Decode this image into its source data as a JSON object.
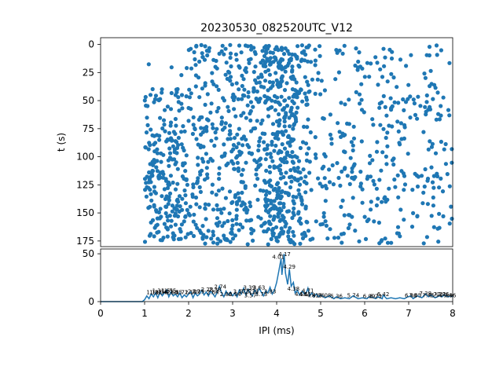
{
  "chart_data": [
    {
      "type": "scatter",
      "title": "20230530_082520UTC_V12",
      "xlabel": "",
      "ylabel": "t (s)",
      "xlim": [
        0,
        8
      ],
      "ylim": [
        180,
        -6
      ],
      "y_inverted": true,
      "yticks": [
        0,
        25,
        50,
        75,
        100,
        125,
        150,
        175
      ],
      "x_range_of_points": [
        1.0,
        8.0
      ],
      "point_count_approx": 1400,
      "dense_column_center": 4.15,
      "color": "#1f77b4",
      "grid": false
    },
    {
      "type": "line",
      "title": "",
      "xlabel": "IPI (ms)",
      "ylabel": "",
      "xlim": [
        0,
        8
      ],
      "ylim": [
        0,
        55
      ],
      "xticks": [
        0,
        1,
        2,
        3,
        4,
        5,
        6,
        7,
        8
      ],
      "yticks": [
        0,
        50
      ],
      "color": "#1f77b4",
      "grid": false,
      "series": [
        {
          "values": [
            [
              0,
              0
            ],
            [
              0.95,
              0
            ],
            [
              1.0,
              2
            ],
            [
              1.05,
              6
            ],
            [
              1.1,
              3
            ],
            [
              1.15,
              8
            ],
            [
              1.2,
              5
            ],
            [
              1.25,
              9
            ],
            [
              1.3,
              4
            ],
            [
              1.35,
              10
            ],
            [
              1.4,
              6
            ],
            [
              1.45,
              9
            ],
            [
              1.5,
              12
            ],
            [
              1.55,
              5
            ],
            [
              1.6,
              10
            ],
            [
              1.65,
              6
            ],
            [
              1.7,
              8
            ],
            [
              1.75,
              5
            ],
            [
              1.8,
              9
            ],
            [
              1.85,
              4
            ],
            [
              1.9,
              7
            ],
            [
              1.95,
              5
            ],
            [
              2.0,
              8
            ],
            [
              2.05,
              10
            ],
            [
              2.1,
              4
            ],
            [
              2.15,
              9
            ],
            [
              2.2,
              6
            ],
            [
              2.25,
              8
            ],
            [
              2.3,
              12
            ],
            [
              2.35,
              7
            ],
            [
              2.4,
              10
            ],
            [
              2.45,
              6
            ],
            [
              2.5,
              11
            ],
            [
              2.55,
              8
            ],
            [
              2.6,
              5
            ],
            [
              2.65,
              10
            ],
            [
              2.7,
              16
            ],
            [
              2.75,
              9
            ],
            [
              2.8,
              5
            ],
            [
              2.85,
              11
            ],
            [
              2.9,
              7
            ],
            [
              2.95,
              10
            ],
            [
              3.0,
              6
            ],
            [
              3.05,
              9
            ],
            [
              3.1,
              5
            ],
            [
              3.15,
              12
            ],
            [
              3.2,
              8
            ],
            [
              3.25,
              14
            ],
            [
              3.3,
              7
            ],
            [
              3.35,
              13
            ],
            [
              3.4,
              9
            ],
            [
              3.45,
              6
            ],
            [
              3.5,
              12
            ],
            [
              3.55,
              8
            ],
            [
              3.6,
              14
            ],
            [
              3.65,
              10
            ],
            [
              3.7,
              6
            ],
            [
              3.75,
              11
            ],
            [
              3.8,
              9
            ],
            [
              3.85,
              15
            ],
            [
              3.9,
              8
            ],
            [
              3.95,
              12
            ],
            [
              4.0,
              20
            ],
            [
              4.05,
              32
            ],
            [
              4.1,
              45
            ],
            [
              4.12,
              28
            ],
            [
              4.17,
              50
            ],
            [
              4.2,
              30
            ],
            [
              4.25,
              18
            ],
            [
              4.29,
              34
            ],
            [
              4.33,
              16
            ],
            [
              4.38,
              20
            ],
            [
              4.42,
              9
            ],
            [
              4.47,
              12
            ],
            [
              4.52,
              7
            ],
            [
              4.58,
              11
            ],
            [
              4.63,
              8
            ],
            [
              4.68,
              10
            ],
            [
              4.71,
              14
            ],
            [
              4.75,
              6
            ],
            [
              4.8,
              9
            ],
            [
              4.85,
              5
            ],
            [
              4.9,
              8
            ],
            [
              4.95,
              5
            ],
            [
              5.0,
              7
            ],
            [
              5.1,
              4
            ],
            [
              5.2,
              6
            ],
            [
              5.3,
              3
            ],
            [
              5.36,
              5
            ],
            [
              5.45,
              3
            ],
            [
              5.55,
              4
            ],
            [
              5.65,
              3
            ],
            [
              5.74,
              6
            ],
            [
              5.85,
              3
            ],
            [
              5.95,
              4
            ],
            [
              6.05,
              3
            ],
            [
              6.1,
              5
            ],
            [
              6.2,
              4
            ],
            [
              6.25,
              3
            ],
            [
              6.3,
              5
            ],
            [
              6.4,
              3
            ],
            [
              6.42,
              7
            ],
            [
              6.5,
              3
            ],
            [
              6.6,
              4
            ],
            [
              6.7,
              3
            ],
            [
              6.8,
              4
            ],
            [
              6.9,
              3
            ],
            [
              6.98,
              5
            ],
            [
              7.05,
              6
            ],
            [
              7.1,
              3
            ],
            [
              7.2,
              6
            ],
            [
              7.3,
              4
            ],
            [
              7.38,
              8
            ],
            [
              7.45,
              5
            ],
            [
              7.5,
              7
            ],
            [
              7.6,
              4
            ],
            [
              7.7,
              6
            ],
            [
              7.76,
              5
            ],
            [
              7.8,
              7
            ],
            [
              7.9,
              5
            ],
            [
              7.95,
              6
            ],
            [
              8.0,
              5
            ]
          ]
        }
      ],
      "peak_labels": [
        {
          "x": 1.18,
          "y": 6,
          "text": "1.19"
        },
        {
          "x": 1.25,
          "y": 6,
          "text": "1.22"
        },
        {
          "x": 1.31,
          "y": 8,
          "text": "1.31"
        },
        {
          "x": 1.38,
          "y": 6,
          "text": "1.34"
        },
        {
          "x": 1.44,
          "y": 6,
          "text": "1.42"
        },
        {
          "x": 1.52,
          "y": 8,
          "text": "1.51"
        },
        {
          "x": 1.58,
          "y": 8,
          "text": "1.55"
        },
        {
          "x": 1.62,
          "y": 6,
          "text": "1.60"
        },
        {
          "x": 1.72,
          "y": 6,
          "text": "1.65"
        },
        {
          "x": 1.85,
          "y": 6,
          "text": "1.71"
        },
        {
          "x": 2.05,
          "y": 6,
          "text": "2.14"
        },
        {
          "x": 2.12,
          "y": 7,
          "text": "2.09"
        },
        {
          "x": 2.22,
          "y": 7,
          "text": "2.29"
        },
        {
          "x": 2.42,
          "y": 9,
          "text": "2.28"
        },
        {
          "x": 2.6,
          "y": 9,
          "text": "2.38"
        },
        {
          "x": 2.55,
          "y": 6,
          "text": "2.64"
        },
        {
          "x": 2.72,
          "y": 12,
          "text": "2.74"
        },
        {
          "x": 2.85,
          "y": 4,
          "text": "2.86"
        },
        {
          "x": 3.05,
          "y": 4,
          "text": "2.94"
        },
        {
          "x": 3.15,
          "y": 7,
          "text": "3.17"
        },
        {
          "x": 3.3,
          "y": 7,
          "text": "3.27"
        },
        {
          "x": 3.45,
          "y": 7,
          "text": "3.38"
        },
        {
          "x": 3.38,
          "y": 11,
          "text": "3.39"
        },
        {
          "x": 3.6,
          "y": 11,
          "text": "3.63"
        },
        {
          "x": 3.4,
          "y": 3,
          "text": "3.57"
        },
        {
          "x": 3.65,
          "y": 4,
          "text": "3.73"
        },
        {
          "x": 3.85,
          "y": 7,
          "text": "3.83"
        },
        {
          "x": 4.04,
          "y": 43,
          "text": "4.01"
        },
        {
          "x": 4.18,
          "y": 46,
          "text": "4.17"
        },
        {
          "x": 4.29,
          "y": 33,
          "text": "4.29"
        },
        {
          "x": 4.38,
          "y": 10,
          "text": "4.38"
        },
        {
          "x": 4.55,
          "y": 4,
          "text": "4.58"
        },
        {
          "x": 4.65,
          "y": 4,
          "text": "4.65"
        },
        {
          "x": 4.71,
          "y": 8,
          "text": "4.71"
        },
        {
          "x": 4.82,
          "y": 3,
          "text": "4.81"
        },
        {
          "x": 4.95,
          "y": 3,
          "text": "4.96"
        },
        {
          "x": 5.1,
          "y": 3,
          "text": "5.08"
        },
        {
          "x": 5.36,
          "y": 2,
          "text": "5.36"
        },
        {
          "x": 5.74,
          "y": 3,
          "text": "5.74"
        },
        {
          "x": 6.1,
          "y": 2,
          "text": "6.09"
        },
        {
          "x": 6.25,
          "y": 2,
          "text": "6.23"
        },
        {
          "x": 6.42,
          "y": 4,
          "text": "6.42"
        },
        {
          "x": 7.05,
          "y": 3,
          "text": "6.98"
        },
        {
          "x": 7.15,
          "y": 3,
          "text": "7.05"
        },
        {
          "x": 7.38,
          "y": 5,
          "text": "7.38"
        },
        {
          "x": 7.45,
          "y": 3,
          "text": "7.45"
        },
        {
          "x": 7.62,
          "y": 3,
          "text": "7.54"
        },
        {
          "x": 7.7,
          "y": 4,
          "text": "7.73"
        },
        {
          "x": 7.78,
          "y": 4,
          "text": "7.76"
        },
        {
          "x": 7.85,
          "y": 3,
          "text": "7.84"
        },
        {
          "x": 7.94,
          "y": 3,
          "text": "7.96"
        }
      ]
    }
  ]
}
